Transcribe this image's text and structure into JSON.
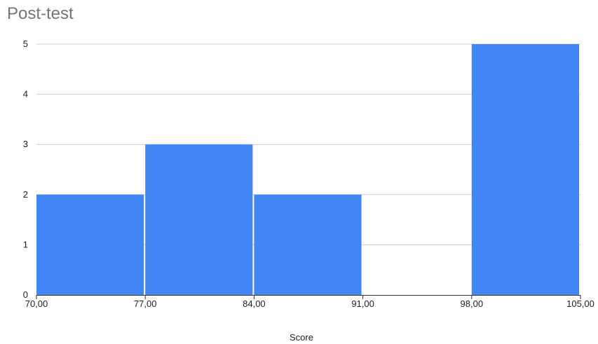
{
  "chart_data": {
    "type": "bar",
    "title": "Post-test",
    "xlabel": "Score",
    "ylabel": "",
    "bins": [
      {
        "start": 70,
        "end": 77,
        "count": 2
      },
      {
        "start": 77,
        "end": 84,
        "count": 3
      },
      {
        "start": 84,
        "end": 91,
        "count": 2
      },
      {
        "start": 91,
        "end": 98,
        "count": 0
      },
      {
        "start": 98,
        "end": 105,
        "count": 5
      }
    ],
    "x_ticks": [
      "70,00",
      "77,00",
      "84,00",
      "91,00",
      "98,00",
      "105,00"
    ],
    "y_ticks": [
      "0",
      "1",
      "2",
      "3",
      "4",
      "5"
    ],
    "xlim": [
      70,
      105
    ],
    "ylim": [
      0,
      5
    ],
    "grid": true,
    "legend": "none",
    "bar_color": "#4285f4",
    "grid_color": "#cccccc",
    "axis_color": "#333333"
  }
}
